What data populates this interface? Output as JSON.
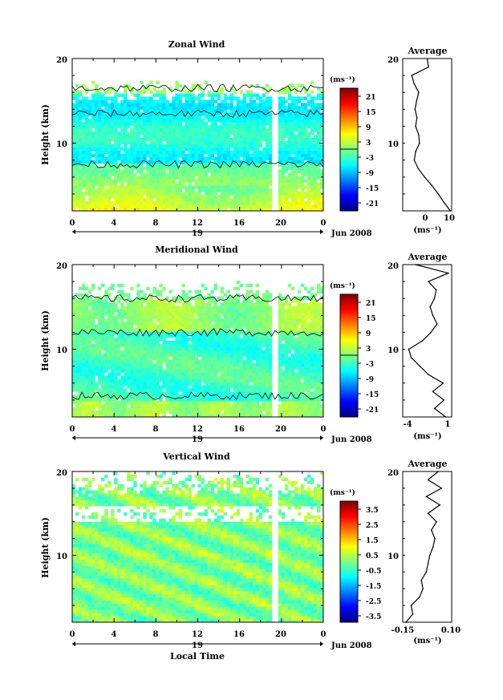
{
  "figure": {
    "x_axis_title": "Local Time",
    "date_label": "Jun 2008",
    "day_label": "19",
    "colorbar_units": "(ms⁻¹)",
    "profile_title": "Average"
  },
  "chart_data": [
    {
      "type": "heatmap",
      "title": "Zonal Wind",
      "ylabel": "Height (km)",
      "x_ticks": [
        "0",
        "4",
        "8",
        "12",
        "16",
        "20",
        "0"
      ],
      "y_ticks": [
        "10",
        "20"
      ],
      "xlim": [
        0,
        24
      ],
      "ylim": [
        2,
        20
      ],
      "colorbar_ticks": [
        "21",
        "15",
        "9",
        "3",
        "-3",
        "-9",
        "-15",
        "-21"
      ],
      "colorbar_range": [
        -24,
        24
      ],
      "zero_contour": true,
      "data_gap_hour": 19.3,
      "profile": {
        "title": "Average",
        "x_ticks": [
          "0",
          "10"
        ],
        "y_ticks": [
          "10",
          "20"
        ],
        "xlim": [
          -9,
          10
        ],
        "x_unit": "(ms⁻¹)",
        "height_km": [
          2,
          3,
          4,
          5,
          6,
          7,
          8,
          9,
          10,
          11,
          12,
          13,
          14,
          15,
          16,
          17,
          18,
          19,
          20
        ],
        "value": [
          9.5,
          7,
          4.8,
          2.3,
          -0.5,
          -3,
          -4.5,
          -4,
          -2.5,
          -2.8,
          -4,
          -3.5,
          -4.2,
          -3.6,
          -2.8,
          -4.5,
          -5.5,
          1,
          0.5
        ]
      }
    },
    {
      "type": "heatmap",
      "title": "Meridional Wind",
      "ylabel": "Height (km)",
      "x_ticks": [
        "0",
        "4",
        "8",
        "12",
        "16",
        "20",
        "0"
      ],
      "y_ticks": [
        "10",
        "20"
      ],
      "xlim": [
        0,
        24
      ],
      "ylim": [
        2,
        20
      ],
      "colorbar_ticks": [
        "21",
        "15",
        "9",
        "3",
        "-3",
        "-9",
        "-15",
        "-21"
      ],
      "colorbar_range": [
        -24,
        24
      ],
      "zero_contour": true,
      "data_gap_hour": 19.3,
      "profile": {
        "title": "Average",
        "x_ticks": [
          "-4",
          "1"
        ],
        "y_ticks": [
          "10",
          "20"
        ],
        "xlim": [
          -4.5,
          1.2
        ],
        "x_unit": "(ms⁻¹)",
        "height_km": [
          2,
          3,
          4,
          5,
          6,
          7,
          8,
          9,
          10,
          11,
          12,
          13,
          14,
          15,
          16,
          17,
          18,
          19,
          20
        ],
        "value": [
          0.5,
          -0.8,
          0.3,
          -1,
          0.2,
          -1.5,
          -2.5,
          -3.5,
          -3.8,
          -2.2,
          -1.2,
          -0.5,
          -1,
          -1.3,
          -0.8,
          -0.6,
          -1.5,
          0.8,
          -3
        ]
      }
    },
    {
      "type": "heatmap",
      "title": "Vertical Wind",
      "ylabel": "Height (km)",
      "xlabel": "Local Time",
      "x_ticks": [
        "0",
        "4",
        "8",
        "12",
        "16",
        "20",
        "0"
      ],
      "y_ticks": [
        "10",
        "20"
      ],
      "xlim": [
        0,
        24
      ],
      "ylim": [
        2,
        20
      ],
      "colorbar_ticks": [
        "3.5",
        "2.5",
        "1.5",
        "0.5",
        "-0.5",
        "-1.5",
        "-2.5",
        "-3.5"
      ],
      "colorbar_range": [
        -4,
        4
      ],
      "zero_contour": false,
      "data_gap_hour": 19.3,
      "profile": {
        "title": "Average",
        "x_ticks": [
          "-0.15",
          "0.10"
        ],
        "y_ticks": [
          "10",
          "20"
        ],
        "xlim": [
          -0.17,
          0.12
        ],
        "x_unit": "(ms⁻¹)",
        "height_km": [
          2,
          3,
          4,
          5,
          6,
          7,
          8,
          9,
          10,
          11,
          12,
          13,
          14,
          15,
          16,
          17,
          18,
          19,
          20
        ],
        "value": [
          -0.15,
          -0.11,
          -0.12,
          -0.07,
          -0.05,
          -0.06,
          -0.03,
          -0.02,
          -0.01,
          0.01,
          0.02,
          0.0,
          0.03,
          -0.02,
          0.05,
          -0.03,
          0.06,
          -0.02,
          0.04
        ]
      }
    }
  ]
}
